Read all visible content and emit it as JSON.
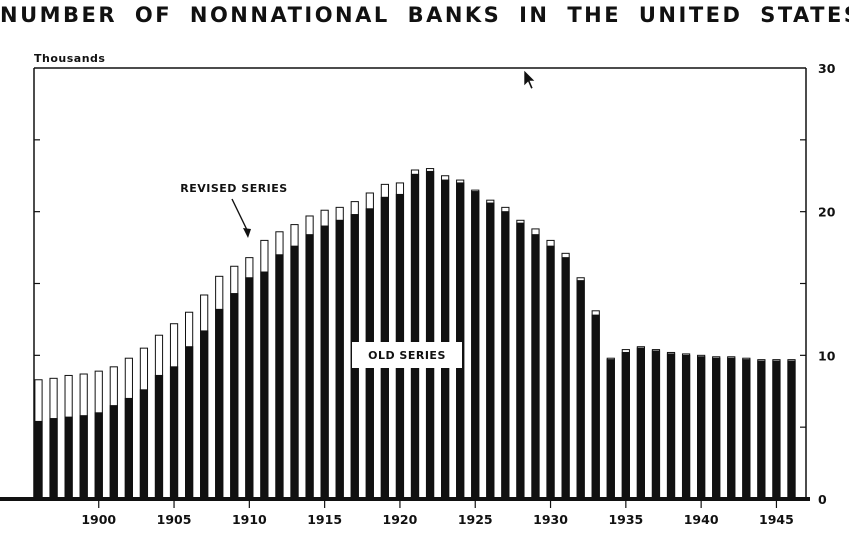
{
  "chart_data": {
    "type": "bar",
    "title": "NUMBER OF NONNATIONAL BANKS IN THE UNITED STATES",
    "ylabel": "Thousands",
    "ylim": [
      0,
      30
    ],
    "yticks": [
      0,
      10,
      20,
      30
    ],
    "ytick_labels": [
      "0",
      "10",
      "20",
      "30"
    ],
    "xtick_labels": [
      "1900",
      "1905",
      "1910",
      "1915",
      "1920",
      "1925",
      "1930",
      "1935",
      "1940",
      "1945"
    ],
    "categories": [
      1896,
      1897,
      1898,
      1899,
      1900,
      1901,
      1902,
      1903,
      1904,
      1905,
      1906,
      1907,
      1908,
      1909,
      1910,
      1911,
      1912,
      1913,
      1914,
      1915,
      1916,
      1917,
      1918,
      1919,
      1920,
      1921,
      1922,
      1923,
      1924,
      1925,
      1926,
      1927,
      1928,
      1929,
      1930,
      1931,
      1932,
      1933,
      1934,
      1935,
      1936,
      1937,
      1938,
      1939,
      1940,
      1941,
      1942,
      1943,
      1944,
      1945,
      1946
    ],
    "series": [
      {
        "name": "OLD SERIES",
        "color": "#111111",
        "values": [
          5.4,
          5.6,
          5.7,
          5.8,
          6.0,
          6.5,
          7.0,
          7.6,
          8.6,
          9.2,
          10.6,
          11.7,
          13.2,
          14.3,
          15.4,
          15.8,
          17.0,
          17.6,
          18.4,
          19.0,
          19.4,
          19.8,
          20.2,
          21.0,
          21.2,
          22.6,
          22.8,
          22.2,
          22.0,
          21.4,
          20.6,
          20.0,
          19.2,
          18.4,
          17.6,
          16.8,
          15.2,
          12.8,
          9.7,
          10.2,
          10.5,
          10.3,
          10.1,
          10.0,
          9.9,
          9.8,
          9.8,
          9.7,
          9.6,
          9.6,
          9.6
        ]
      },
      {
        "name": "REVISED SERIES",
        "color": "#ffffff",
        "values": [
          8.3,
          8.4,
          8.6,
          8.7,
          8.9,
          9.2,
          9.8,
          10.5,
          11.4,
          12.2,
          13.0,
          14.2,
          15.5,
          16.2,
          16.8,
          18.0,
          18.6,
          19.1,
          19.7,
          20.1,
          20.3,
          20.7,
          21.3,
          21.9,
          22.0,
          22.9,
          23.0,
          22.5,
          22.2,
          21.5,
          20.8,
          20.3,
          19.4,
          18.8,
          18.0,
          17.1,
          15.4,
          13.1,
          9.8,
          10.4,
          10.6,
          10.4,
          10.2,
          10.1,
          10.0,
          9.9,
          9.9,
          9.8,
          9.7,
          9.7,
          9.7
        ]
      }
    ],
    "annotations": {
      "revised": "REVISED SERIES",
      "old": "OLD SERIES"
    },
    "grid": false
  }
}
